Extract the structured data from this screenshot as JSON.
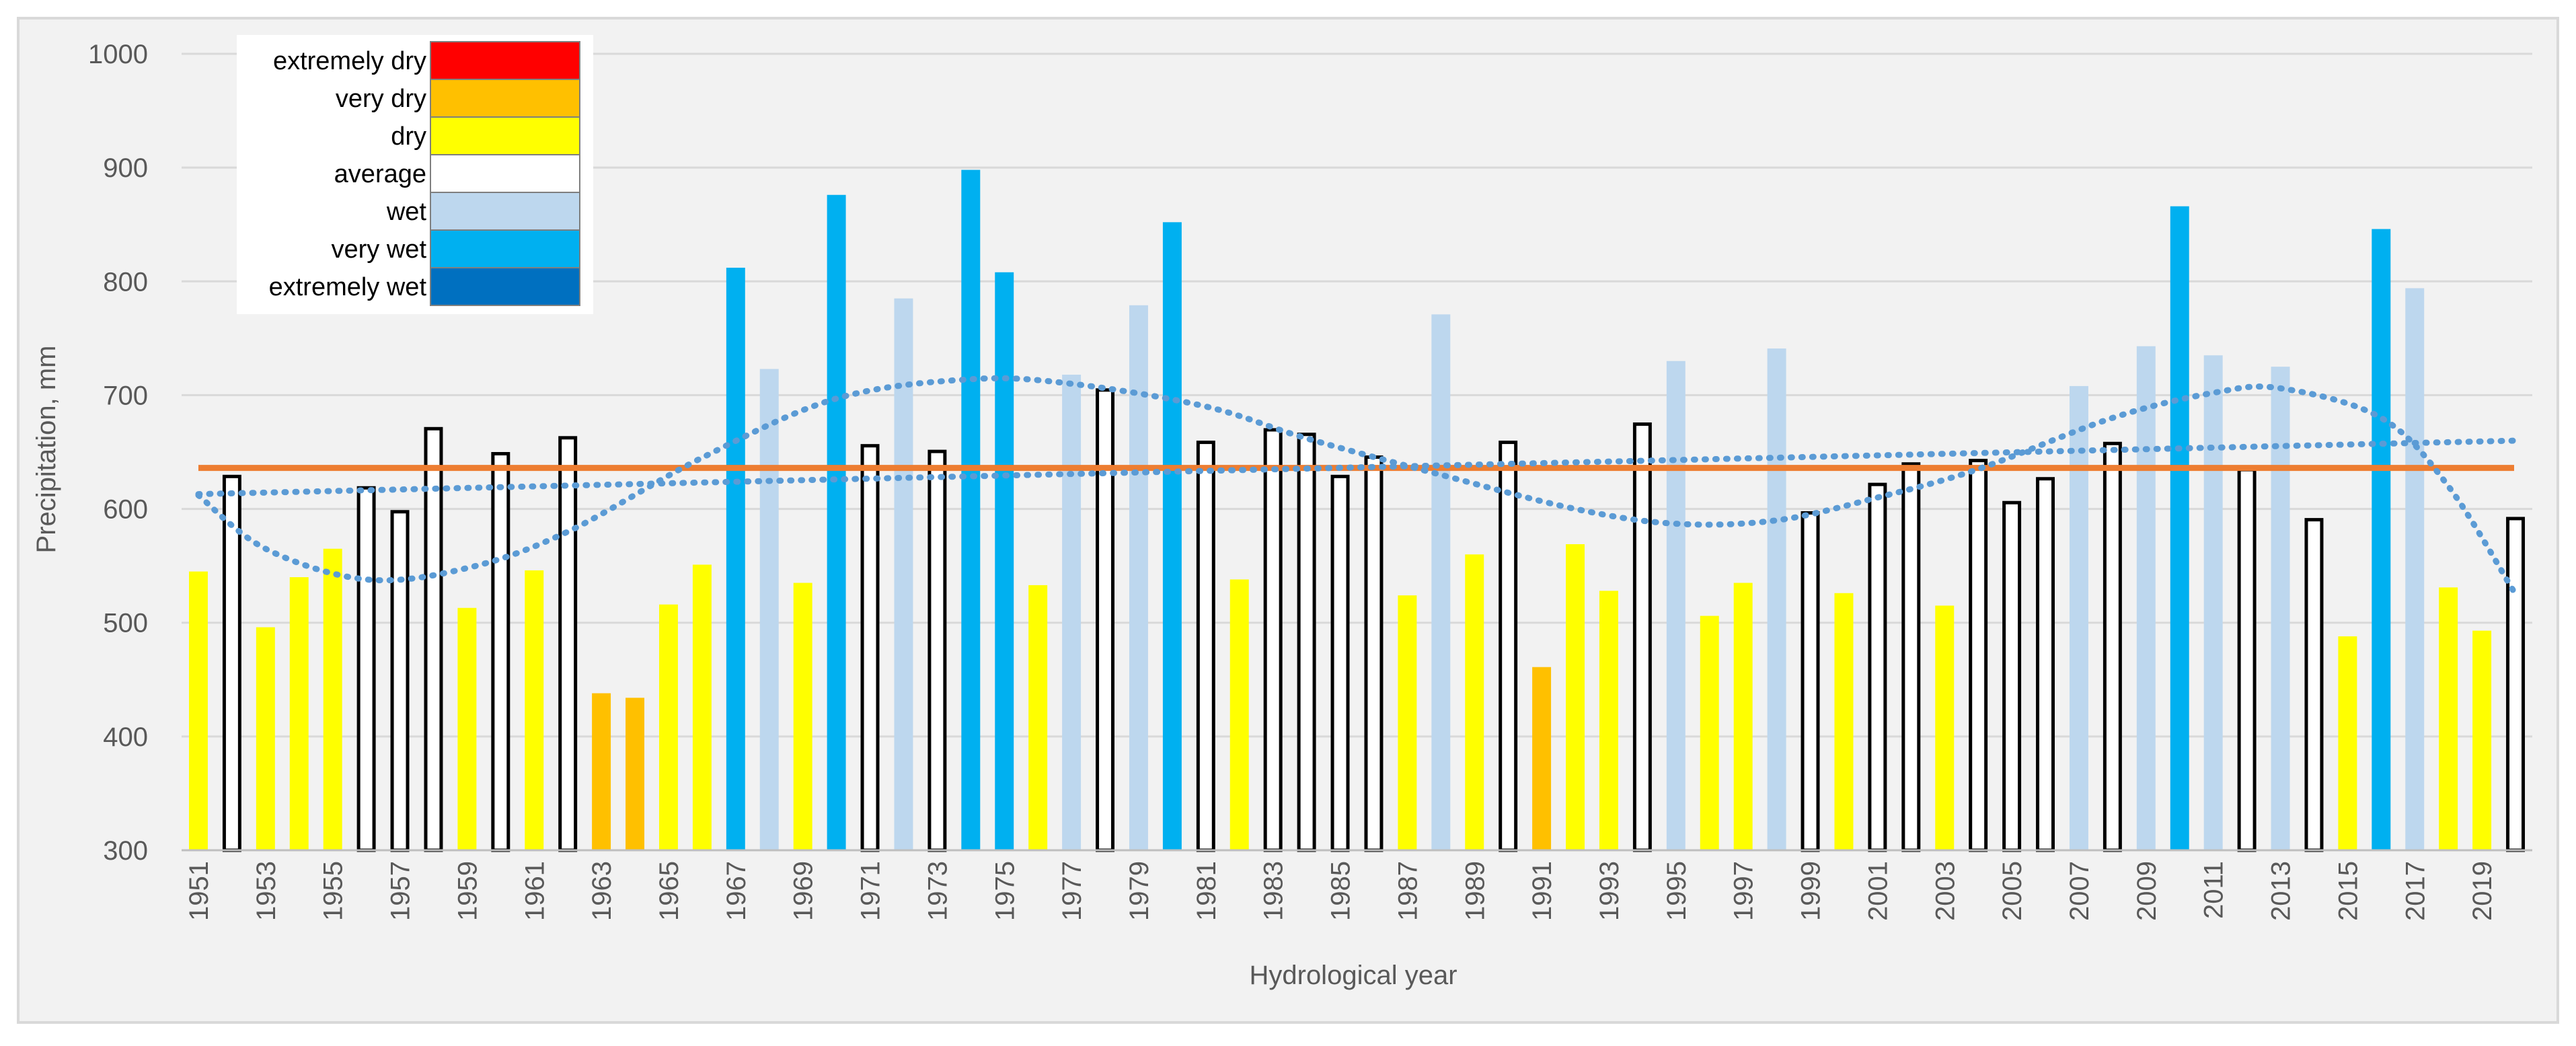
{
  "chart_data": {
    "type": "bar",
    "title": "",
    "xlabel": "Hydrological year",
    "ylabel": "Precipitation, mm",
    "ylim": [
      300,
      1000
    ],
    "yticks": [
      300,
      400,
      500,
      600,
      700,
      800,
      900,
      1000
    ],
    "years": [
      1951,
      1952,
      1953,
      1954,
      1955,
      1956,
      1957,
      1958,
      1959,
      1960,
      1961,
      1962,
      1963,
      1964,
      1965,
      1966,
      1967,
      1968,
      1969,
      1970,
      1971,
      1972,
      1973,
      1974,
      1975,
      1976,
      1977,
      1978,
      1979,
      1980,
      1981,
      1982,
      1983,
      1984,
      1985,
      1986,
      1987,
      1988,
      1989,
      1990,
      1991,
      1992,
      1993,
      1994,
      1995,
      1996,
      1997,
      1998,
      1999,
      2000,
      2001,
      2002,
      2003,
      2004,
      2005,
      2006,
      2007,
      2008,
      2009,
      2010,
      2011,
      2012,
      2013,
      2014,
      2015,
      2016,
      2017,
      2018,
      2019,
      2020
    ],
    "tick_labels": [
      "1951",
      "1953",
      "1955",
      "1957",
      "1959",
      "1961",
      "1963",
      "1965",
      "1967",
      "1969",
      "1971",
      "1973",
      "1975",
      "1977",
      "1979",
      "1981",
      "1983",
      "1985",
      "1987",
      "1989",
      "1991",
      "1993",
      "1995",
      "1997",
      "1999",
      "2001",
      "2003",
      "2005",
      "2007",
      "2009",
      "2011",
      "2013",
      "2015",
      "2017",
      "2019"
    ],
    "values": [
      545,
      630,
      496,
      540,
      565,
      620,
      599,
      672,
      513,
      650,
      546,
      664,
      438,
      434,
      516,
      551,
      812,
      723,
      535,
      876,
      657,
      785,
      652,
      898,
      808,
      533,
      718,
      706,
      779,
      852,
      660,
      538,
      671,
      667,
      630,
      647,
      524,
      771,
      560,
      660,
      461,
      569,
      528,
      676,
      730,
      506,
      535,
      741,
      598,
      526,
      623,
      641,
      515,
      644,
      607,
      628,
      708,
      659,
      743,
      866,
      735,
      636,
      725,
      592,
      488,
      846,
      794,
      531,
      493,
      593
    ],
    "categories_by_year": [
      "dry",
      "average",
      "dry",
      "dry",
      "dry",
      "average",
      "average",
      "average",
      "dry",
      "average",
      "dry",
      "average",
      "very dry",
      "very dry",
      "dry",
      "dry",
      "very wet",
      "wet",
      "dry",
      "very wet",
      "average",
      "wet",
      "average",
      "very wet",
      "very wet",
      "dry",
      "wet",
      "average",
      "wet",
      "very wet",
      "average",
      "dry",
      "average",
      "average",
      "average",
      "average",
      "dry",
      "wet",
      "dry",
      "average",
      "very dry",
      "dry",
      "dry",
      "average",
      "wet",
      "dry",
      "dry",
      "wet",
      "average",
      "dry",
      "average",
      "average",
      "dry",
      "average",
      "average",
      "average",
      "wet",
      "average",
      "wet",
      "very wet",
      "wet",
      "average",
      "wet",
      "average",
      "dry",
      "very wet",
      "wet",
      "dry",
      "dry",
      "average"
    ],
    "mean_line": {
      "name": "mean",
      "value": 636,
      "color": "#ED7D31"
    },
    "linear_trend": {
      "name": "linear trend",
      "start": 613,
      "end": 660
    },
    "poly_trend": {
      "name": "polynomial trend",
      "x": [
        1951,
        1953,
        1956,
        1959,
        1962,
        1966,
        1970,
        1974,
        1977,
        1981,
        1984,
        1988,
        1992,
        1995,
        1998,
        2001,
        2004,
        2008,
        2011,
        2013,
        2016,
        2018,
        2020
      ],
      "y": [
        612,
        565,
        538,
        548,
        580,
        645,
        697,
        714,
        710,
        690,
        662,
        630,
        600,
        587,
        590,
        610,
        635,
        680,
        702,
        706,
        680,
        620,
        525
      ]
    },
    "legend": [
      {
        "label": "extremely dry",
        "key": "extremely dry",
        "color": "#FF0000"
      },
      {
        "label": "very dry",
        "key": "very dry",
        "color": "#FFC000"
      },
      {
        "label": "dry",
        "key": "dry",
        "color": "#FFFF00"
      },
      {
        "label": "average",
        "key": "average",
        "color": "#FFFFFF"
      },
      {
        "label": "wet",
        "key": "wet",
        "color": "#BDD7EE"
      },
      {
        "label": "very wet",
        "key": "very wet",
        "color": "#00B0F0"
      },
      {
        "label": "extremely wet",
        "key": "extremely wet",
        "color": "#0070C0"
      }
    ],
    "legend_placement": "top-left",
    "grid": true
  }
}
